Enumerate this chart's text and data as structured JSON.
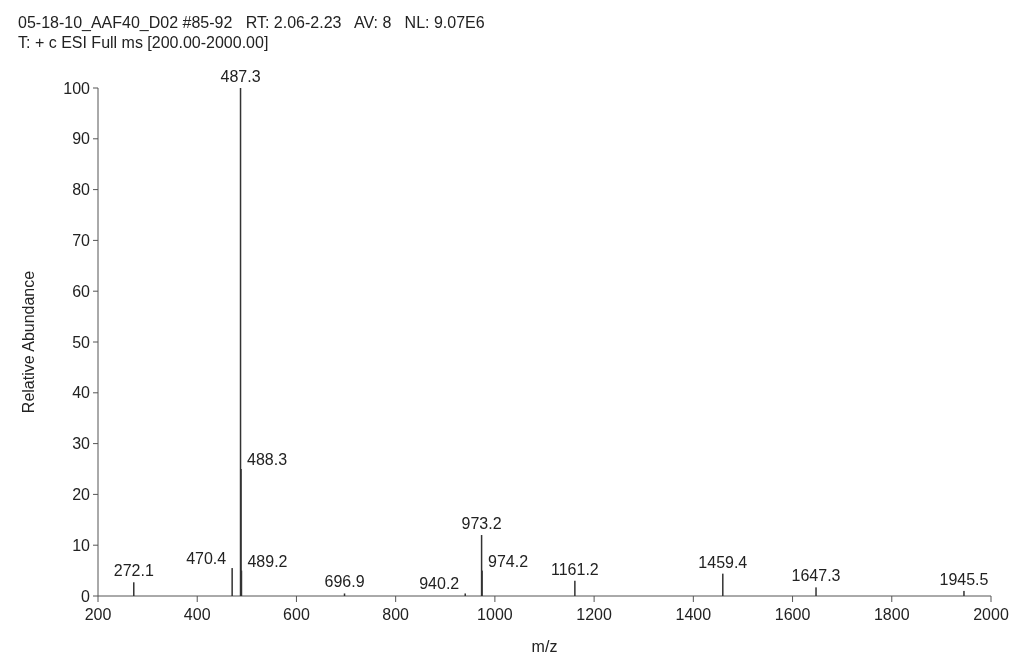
{
  "chart_data": {
    "type": "bar",
    "title": "05-18-10_AAF40_D02 #85-92   RT: 2.06-2.23   AV: 8   NL: 9.07E6",
    "subtitle": "T: + c ESI Full ms [200.00-2000.00]",
    "xlabel": "m/z",
    "ylabel": "Relative Abundance",
    "x": [
      272.1,
      470.4,
      487.3,
      488.3,
      489.2,
      696.9,
      940.2,
      973.2,
      974.2,
      1161.2,
      1459.4,
      1647.3,
      1945.5
    ],
    "values": [
      2.7,
      5.5,
      100,
      25,
      5,
      0.5,
      0.5,
      12,
      5,
      3,
      4.4,
      1.7,
      1
    ],
    "color": "#333333",
    "xlim": [
      200,
      2000
    ],
    "xticks": [
      200,
      400,
      600,
      800,
      1000,
      1200,
      1400,
      1600,
      1800,
      2000
    ],
    "ylim": [
      0,
      100
    ],
    "yticks": [
      0,
      10,
      20,
      30,
      40,
      50,
      60,
      70,
      80,
      90,
      100
    ],
    "grid": false,
    "annotations": [
      {
        "text": "272.1",
        "x": 272.1,
        "y": 2.7
      },
      {
        "text": "470.4",
        "x": 470.4,
        "y": 5.5
      },
      {
        "text": "487.3",
        "x": 487.3,
        "y": 100
      },
      {
        "text": "488.3",
        "x": 488.3,
        "y": 25
      },
      {
        "text": "489.2",
        "x": 489.2,
        "y": 5
      },
      {
        "text": "696.9",
        "x": 696.9,
        "y": 0.5
      },
      {
        "text": "940.2",
        "x": 940.2,
        "y": 0.5
      },
      {
        "text": "973.2",
        "x": 973.2,
        "y": 12
      },
      {
        "text": "974.2",
        "x": 974.2,
        "y": 5
      },
      {
        "text": "1161.2",
        "x": 1161.2,
        "y": 3
      },
      {
        "text": "1459.4",
        "x": 1459.4,
        "y": 4.4
      },
      {
        "text": "1647.3",
        "x": 1647.3,
        "y": 1.7
      },
      {
        "text": "1945.5",
        "x": 1945.5,
        "y": 1
      }
    ]
  }
}
